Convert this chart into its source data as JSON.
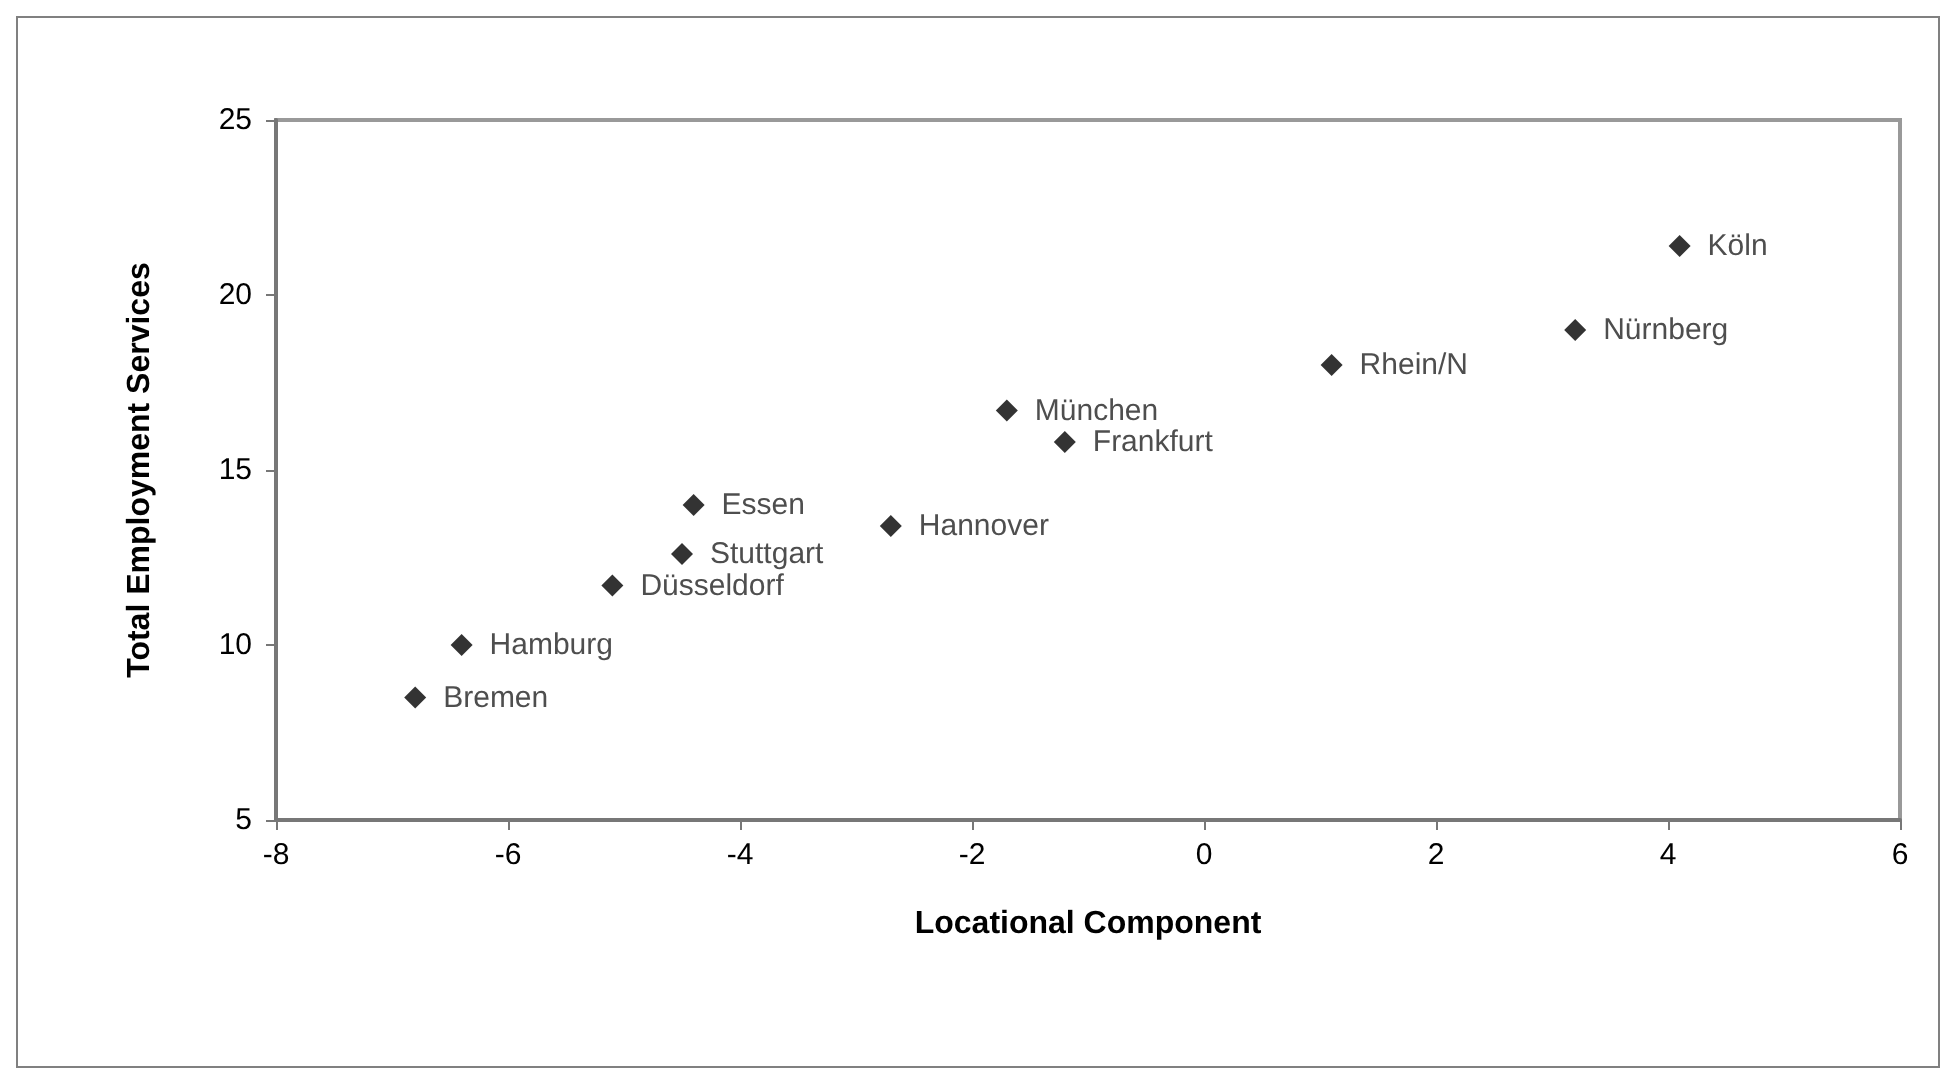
{
  "chart_data": {
    "type": "scatter",
    "xlabel": "Locational Component",
    "ylabel": "Total Employment Services",
    "x": [
      4.1,
      3.2,
      1.1,
      -1.7,
      -1.2,
      -2.7,
      -4.4,
      -4.5,
      -5.1,
      -6.4,
      -6.8
    ],
    "series": [
      {
        "color": "#000000",
        "values": [
          21.4,
          19.0,
          18.0,
          16.7,
          15.8,
          13.4,
          14.0,
          12.6,
          11.7,
          10.0,
          8.5
        ]
      }
    ],
    "xlim": [
      -8,
      6
    ],
    "xticks": [
      -8,
      -6,
      -4,
      -2,
      0,
      2,
      4,
      6
    ],
    "ylim": [
      5,
      25
    ],
    "yticks": [
      5,
      10,
      15,
      20,
      25
    ],
    "grid": false,
    "marker": "diamond",
    "annotations": [
      {
        "text": "Köln",
        "x": 4.1,
        "y": 21.4
      },
      {
        "text": "Nürnberg",
        "x": 3.2,
        "y": 19.0
      },
      {
        "text": "Rhein/N",
        "x": 1.1,
        "y": 18.0
      },
      {
        "text": "München",
        "x": -1.7,
        "y": 16.7
      },
      {
        "text": "Frankfurt",
        "x": -1.2,
        "y": 15.8
      },
      {
        "text": "Hannover",
        "x": -2.7,
        "y": 13.4
      },
      {
        "text": "Essen",
        "x": -4.4,
        "y": 14.0
      },
      {
        "text": "Stuttgart",
        "x": -4.5,
        "y": 12.6
      },
      {
        "text": "Düsseldorf",
        "x": -5.1,
        "y": 11.7
      },
      {
        "text": "Hamburg",
        "x": -6.4,
        "y": 10.0
      },
      {
        "text": "Bremen",
        "x": -6.8,
        "y": 8.5
      }
    ]
  }
}
